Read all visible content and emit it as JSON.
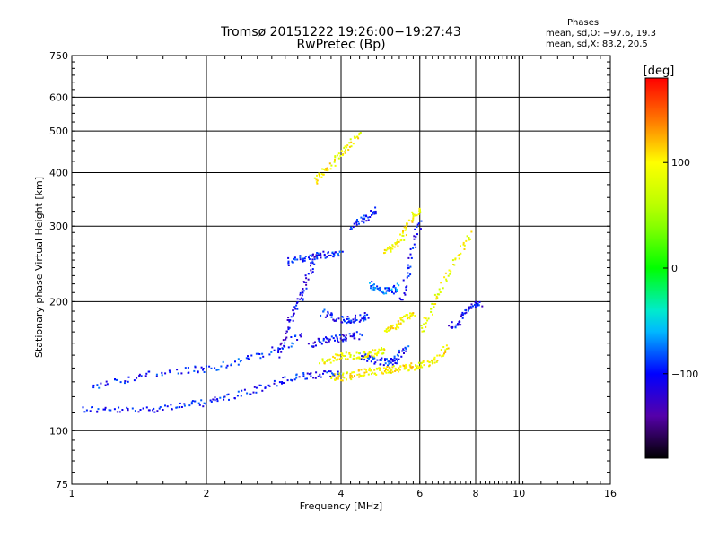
{
  "header": {
    "title_line1": "Tromsø 20151222 19:26:00−19:27:43",
    "title_line2": "RwPretec (Bp)"
  },
  "stats": {
    "title": "Phases",
    "line_o": "mean, sd,O: −97.6, 19.3",
    "line_x": "mean, sd,X:  83.2, 20.5"
  },
  "colorbar": {
    "unit_label": "[deg]",
    "range": [
      -180,
      180
    ],
    "tick_values": [
      100,
      0,
      -100
    ],
    "tick_labels": [
      "100",
      "0",
      "−100"
    ]
  },
  "chart_data": {
    "type": "scatter",
    "title": "Tromsø 20151222 19:26:00−19:27:43 RwPretec (Bp)",
    "xlabel": "Frequency [MHz]",
    "ylabel": "Stationary phase Virtual Height [km]",
    "x_scale": "log",
    "y_scale": "log",
    "xlim": [
      1,
      16
    ],
    "ylim": [
      75,
      750
    ],
    "x_ticks": [
      1,
      2,
      4,
      6,
      8,
      10,
      16
    ],
    "x_tick_labels": [
      "1",
      "2",
      "4",
      "6",
      "8",
      "10",
      "16"
    ],
    "y_ticks": [
      75,
      100,
      200,
      300,
      400,
      500,
      600,
      750
    ],
    "y_tick_labels": [
      "75",
      "100",
      "200",
      "300",
      "400",
      "500",
      "600",
      "750"
    ],
    "grid": true,
    "color_by": "phase [deg]",
    "traces": [
      {
        "x": [
          1.05,
          1.2,
          1.4,
          1.6,
          1.8,
          2.0,
          2.2,
          2.5,
          2.8,
          3.1,
          3.4,
          3.7,
          4.0
        ],
        "y": [
          113,
          112,
          112,
          114,
          115,
          117,
          120,
          124,
          129,
          133,
          135,
          136,
          136
        ],
        "phase": -100
      },
      {
        "x": [
          1.1,
          1.3,
          1.5,
          1.8,
          2.0,
          2.3,
          2.6,
          3.0,
          3.3
        ],
        "y": [
          128,
          132,
          136,
          139,
          140,
          145,
          150,
          158,
          170
        ],
        "phase": -95
      },
      {
        "x": [
          2.9,
          3.0,
          3.1,
          3.2,
          3.3,
          3.4,
          3.5
        ],
        "y": [
          150,
          170,
          185,
          200,
          215,
          240,
          260
        ],
        "phase": -110
      },
      {
        "x": [
          3.0,
          3.2,
          3.4,
          3.6,
          3.8,
          4.0
        ],
        "y": [
          248,
          252,
          256,
          258,
          260,
          262
        ],
        "phase": -95
      },
      {
        "x": [
          3.4,
          3.6,
          3.8,
          4.0,
          4.2,
          4.4
        ],
        "y": [
          160,
          162,
          164,
          165,
          166,
          168
        ],
        "phase": -105
      },
      {
        "x": [
          3.6,
          3.8,
          4.0,
          4.2,
          4.4,
          4.6
        ],
        "y": [
          190,
          186,
          182,
          182,
          184,
          186
        ],
        "phase": -100
      },
      {
        "x": [
          4.4,
          4.6,
          4.8,
          5.0,
          5.2,
          5.4,
          5.6
        ],
        "y": [
          150,
          148,
          146,
          145,
          146,
          150,
          160
        ],
        "phase": -95
      },
      {
        "x": [
          5.4,
          5.6,
          5.8,
          6.0
        ],
        "y": [
          200,
          230,
          270,
          320
        ],
        "phase": -100
      },
      {
        "x": [
          4.6,
          4.8,
          5.0,
          5.2,
          5.4
        ],
        "y": [
          220,
          215,
          212,
          214,
          218
        ],
        "phase": -80
      },
      {
        "x": [
          7.0,
          7.3,
          7.6,
          7.9,
          8.2
        ],
        "y": [
          175,
          180,
          190,
          200,
          195
        ],
        "phase": -105
      },
      {
        "x": [
          3.8,
          4.0,
          4.2,
          4.4,
          4.6,
          4.8,
          5.0,
          5.2,
          5.4,
          5.6,
          5.8,
          6.0,
          6.3,
          6.6,
          6.9
        ],
        "y": [
          134,
          134,
          135,
          137,
          138,
          138,
          139,
          140,
          141,
          141,
          142,
          143,
          145,
          150,
          160
        ],
        "phase": 100
      },
      {
        "x": [
          3.6,
          3.8,
          4.0,
          4.2,
          4.4,
          4.6,
          4.8,
          5.0
        ],
        "y": [
          145,
          148,
          150,
          150,
          151,
          152,
          153,
          155
        ],
        "phase": 95
      },
      {
        "x": [
          5.0,
          5.2,
          5.4,
          5.6,
          5.8
        ],
        "y": [
          170,
          175,
          180,
          185,
          190
        ],
        "phase": 100
      },
      {
        "x": [
          6.0,
          6.3,
          6.6,
          7.0,
          7.5,
          7.8
        ],
        "y": [
          170,
          190,
          210,
          240,
          270,
          290
        ],
        "phase": 90
      },
      {
        "x": [
          5.0,
          5.2,
          5.4,
          5.6,
          5.8,
          6.0
        ],
        "y": [
          260,
          270,
          280,
          300,
          320,
          330
        ],
        "phase": 95
      },
      {
        "x": [
          3.5,
          3.6,
          3.8,
          4.0,
          4.2,
          4.4
        ],
        "y": [
          380,
          400,
          420,
          450,
          470,
          500
        ],
        "phase": 95
      },
      {
        "x": [
          4.2,
          4.4,
          4.6,
          4.8
        ],
        "y": [
          300,
          310,
          320,
          330
        ],
        "phase": -100
      }
    ]
  }
}
